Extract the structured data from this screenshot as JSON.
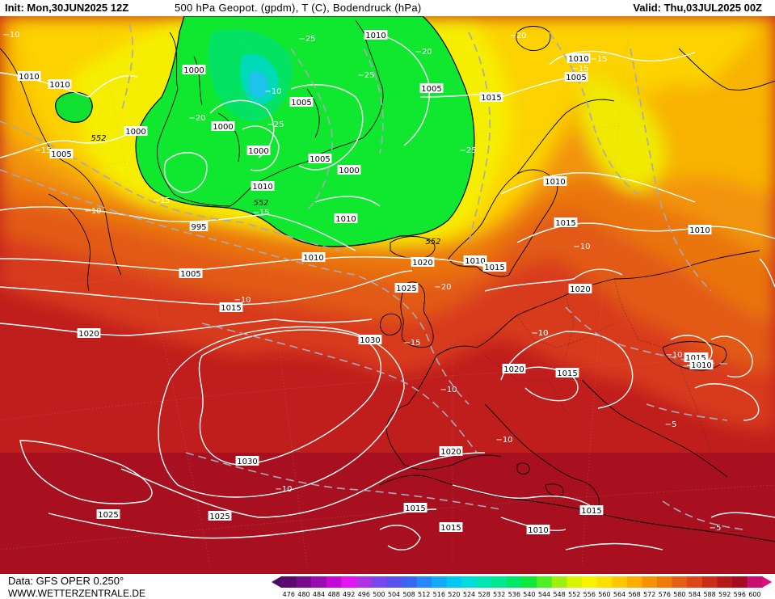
{
  "header": {
    "init": "Init: Mon,30JUN2025 12Z",
    "title": "500 hPa Geopot. (gpdm), T (C), Bodendruck (hPa)",
    "valid": "Valid: Thu,03JUL2025 00Z"
  },
  "footer": {
    "source": "Data: GFS OPER 0.250°",
    "site": "WWW.WETTERZENTRALE.DE"
  },
  "scale": {
    "values": [
      "476",
      "480",
      "484",
      "488",
      "492",
      "496",
      "500",
      "504",
      "508",
      "512",
      "516",
      "520",
      "524",
      "528",
      "532",
      "536",
      "540",
      "544",
      "548",
      "552",
      "556",
      "560",
      "564",
      "568",
      "572",
      "576",
      "580",
      "584",
      "588",
      "592",
      "596",
      "600"
    ],
    "colors": [
      "#5a0a6e",
      "#7a0a8c",
      "#9c0ab4",
      "#c40ad2",
      "#e414f0",
      "#b032e6",
      "#7a46ee",
      "#5a50f0",
      "#3c64f4",
      "#2888fa",
      "#10aaf8",
      "#00c8f0",
      "#00dcd8",
      "#00e6b0",
      "#00e890",
      "#00e868",
      "#10e83c",
      "#50f020",
      "#9ef010",
      "#d8f400",
      "#f8f400",
      "#fce000",
      "#fcc800",
      "#fbae00",
      "#f59400",
      "#ee7a0a",
      "#e66014",
      "#dc4618",
      "#cc2c18",
      "#b81818",
      "#a60c20",
      "#c81070"
    ]
  },
  "map": {
    "isobars": [
      {
        "label": "1010"
      },
      {
        "label": "1010"
      },
      {
        "label": "1000"
      },
      {
        "label": "1000"
      },
      {
        "label": "1000"
      },
      {
        "label": "1000"
      },
      {
        "label": "1005"
      },
      {
        "label": "1005"
      },
      {
        "label": "1005"
      },
      {
        "label": "1000"
      },
      {
        "label": "1010"
      },
      {
        "label": "1005"
      },
      {
        "label": "1015"
      },
      {
        "label": "1010"
      },
      {
        "label": "1005"
      },
      {
        "label": "1010"
      },
      {
        "label": "1010"
      },
      {
        "label": "1005"
      },
      {
        "label": "995"
      },
      {
        "label": "1005"
      },
      {
        "label": "1015"
      },
      {
        "label": "1010"
      },
      {
        "label": "1020"
      },
      {
        "label": "1020"
      },
      {
        "label": "1010"
      },
      {
        "label": "1015"
      },
      {
        "label": "1025"
      },
      {
        "label": "1015"
      },
      {
        "label": "1030"
      },
      {
        "label": "1020"
      },
      {
        "label": "1010"
      },
      {
        "label": "1015"
      },
      {
        "label": "1020"
      },
      {
        "label": "1015"
      },
      {
        "label": "1010"
      },
      {
        "label": "1015"
      },
      {
        "label": "1030"
      },
      {
        "label": "1020"
      },
      {
        "label": "1025"
      },
      {
        "label": "1025"
      },
      {
        "label": "1015"
      },
      {
        "label": "1015"
      },
      {
        "label": "1015"
      },
      {
        "label": "1010"
      },
      {
        "label": "1010"
      }
    ],
    "temperatures": [
      {
        "label": "-25"
      },
      {
        "label": "-20"
      },
      {
        "label": "-20"
      },
      {
        "label": "-15"
      },
      {
        "label": "-15"
      },
      {
        "label": "-20"
      },
      {
        "label": "-10"
      },
      {
        "label": "-25"
      },
      {
        "label": "-25"
      },
      {
        "label": "-15"
      },
      {
        "label": "-15"
      },
      {
        "label": "-10"
      },
      {
        "label": "-15"
      },
      {
        "label": "-25"
      },
      {
        "label": "-10"
      },
      {
        "label": "-20"
      },
      {
        "label": "-10"
      },
      {
        "label": "-15"
      },
      {
        "label": "-10"
      },
      {
        "label": "-10"
      },
      {
        "label": "-10"
      },
      {
        "label": "-10"
      },
      {
        "label": "-5"
      },
      {
        "label": "-5"
      },
      {
        "label": "-10"
      },
      {
        "label": "-10"
      },
      {
        "label": "-10"
      },
      {
        "label": "-10"
      }
    ],
    "heights": [
      {
        "label": "552"
      },
      {
        "label": "552"
      },
      {
        "label": "552"
      }
    ]
  }
}
